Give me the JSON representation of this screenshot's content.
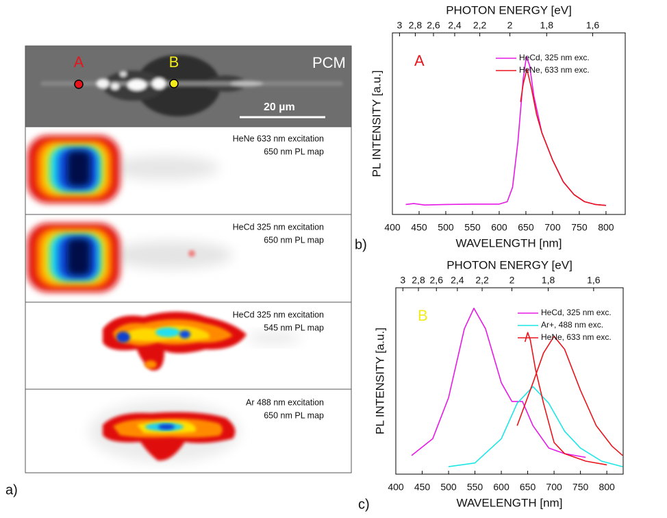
{
  "panel_a": {
    "label": "a)",
    "pcm": {
      "title": "PCM",
      "scale_bar": "20 µm",
      "point_a": "A",
      "point_b": "B"
    },
    "maps": [
      {
        "excitation": "HeNe 633 nm excitation",
        "map": "650 nm PL map"
      },
      {
        "excitation": "HeCd 325 nm excitation",
        "map": "650 nm PL map"
      },
      {
        "excitation": "HeCd 325 nm excitation",
        "map": "545 nm PL map"
      },
      {
        "excitation": "Ar 488 nm excitation",
        "map": "650 nm PL map"
      }
    ]
  },
  "chart_data": [
    {
      "type": "line",
      "panel_label": "b)",
      "point_label": "A",
      "point_label_color": "#e8141b",
      "xlabel": "WAVELENGTH [nm]",
      "ylabel": "PL INTENSITY [a.u.]",
      "x2label": "PHOTON ENERGY [eV]",
      "xlim": [
        400,
        836
      ],
      "ylim": [
        0,
        1
      ],
      "xticks": [
        400,
        450,
        500,
        550,
        600,
        650,
        700,
        750,
        800
      ],
      "x2ticks": [
        3,
        {
          "value": 2.8,
          "label": "2,8"
        },
        {
          "value": 2.6,
          "label": "2,6"
        },
        {
          "value": 2.4,
          "label": "2,4"
        },
        {
          "value": 2.2,
          "label": "2,2"
        },
        2,
        {
          "value": 1.8,
          "label": "1,8"
        },
        {
          "value": 1.6,
          "label": "1,6"
        }
      ],
      "legend": "upper right",
      "series": [
        {
          "name": "HeCd, 325 nm exc.",
          "color": "#e619e6",
          "x": [
            425,
            440,
            460,
            500,
            550,
            600,
            615,
            625,
            635,
            645,
            651,
            657,
            665,
            680,
            700,
            720,
            740,
            760,
            780,
            800
          ],
          "values": [
            0.055,
            0.06,
            0.052,
            0.055,
            0.057,
            0.057,
            0.07,
            0.15,
            0.4,
            0.75,
            0.87,
            0.82,
            0.65,
            0.45,
            0.3,
            0.18,
            0.11,
            0.07,
            0.055,
            0.05
          ]
        },
        {
          "name": "HeNe, 633 nm exc.",
          "color": "#e8141b",
          "x": [
            640,
            645,
            652,
            660,
            670,
            680,
            700,
            720,
            740,
            760,
            780,
            800
          ],
          "values": [
            0.62,
            0.72,
            0.8,
            0.7,
            0.55,
            0.45,
            0.3,
            0.18,
            0.11,
            0.07,
            0.055,
            0.05
          ]
        }
      ]
    },
    {
      "type": "line",
      "panel_label": "c)",
      "point_label": "B",
      "point_label_color": "#f2ea1a",
      "xlabel": "WAVELENGTH [nm]",
      "ylabel": "PL INTENSITY [a.u.]",
      "x2label": "PHOTON ENERGY [eV]",
      "xlim": [
        400,
        831
      ],
      "ylim": [
        0,
        1
      ],
      "xticks": [
        400,
        450,
        500,
        550,
        600,
        650,
        700,
        750,
        800
      ],
      "x2ticks": [
        3,
        {
          "value": 2.8,
          "label": "2,8"
        },
        {
          "value": 2.6,
          "label": "2,6"
        },
        {
          "value": 2.4,
          "label": "2,4"
        },
        {
          "value": 2.2,
          "label": "2,2"
        },
        2,
        {
          "value": 1.8,
          "label": "1,8"
        },
        {
          "value": 1.6,
          "label": "1,6"
        }
      ],
      "legend": "upper right",
      "series": [
        {
          "name": "HeCd, 325 nm exc.",
          "color": "#e619e6",
          "x": [
            430,
            470,
            500,
            530,
            548,
            570,
            600,
            620,
            640,
            660,
            690,
            720,
            760
          ],
          "values": [
            0.1,
            0.19,
            0.41,
            0.78,
            0.89,
            0.78,
            0.49,
            0.39,
            0.39,
            0.26,
            0.14,
            0.11,
            0.09
          ]
        },
        {
          "name": "Ar+, 488 nm exc.",
          "color": "#1ae6e6",
          "x": [
            500,
            550,
            600,
            630,
            660,
            690,
            720,
            750,
            790,
            830
          ],
          "values": [
            0.04,
            0.06,
            0.19,
            0.38,
            0.47,
            0.38,
            0.23,
            0.14,
            0.07,
            0.04
          ]
        },
        {
          "name": "HeNe, 633 nm exc.",
          "color": "#e8141b",
          "x": [
            645,
            650,
            655,
            665,
            680,
            700,
            720,
            760,
            800,
            null,
            630,
            660,
            680,
            700,
            720,
            750,
            780,
            810,
            830
          ],
          "values": [
            0.71,
            0.76,
            0.72,
            0.56,
            0.38,
            0.17,
            0.11,
            0.07,
            0.05,
            null,
            0.26,
            0.49,
            0.65,
            0.74,
            0.67,
            0.45,
            0.26,
            0.15,
            0.1
          ]
        }
      ]
    }
  ]
}
